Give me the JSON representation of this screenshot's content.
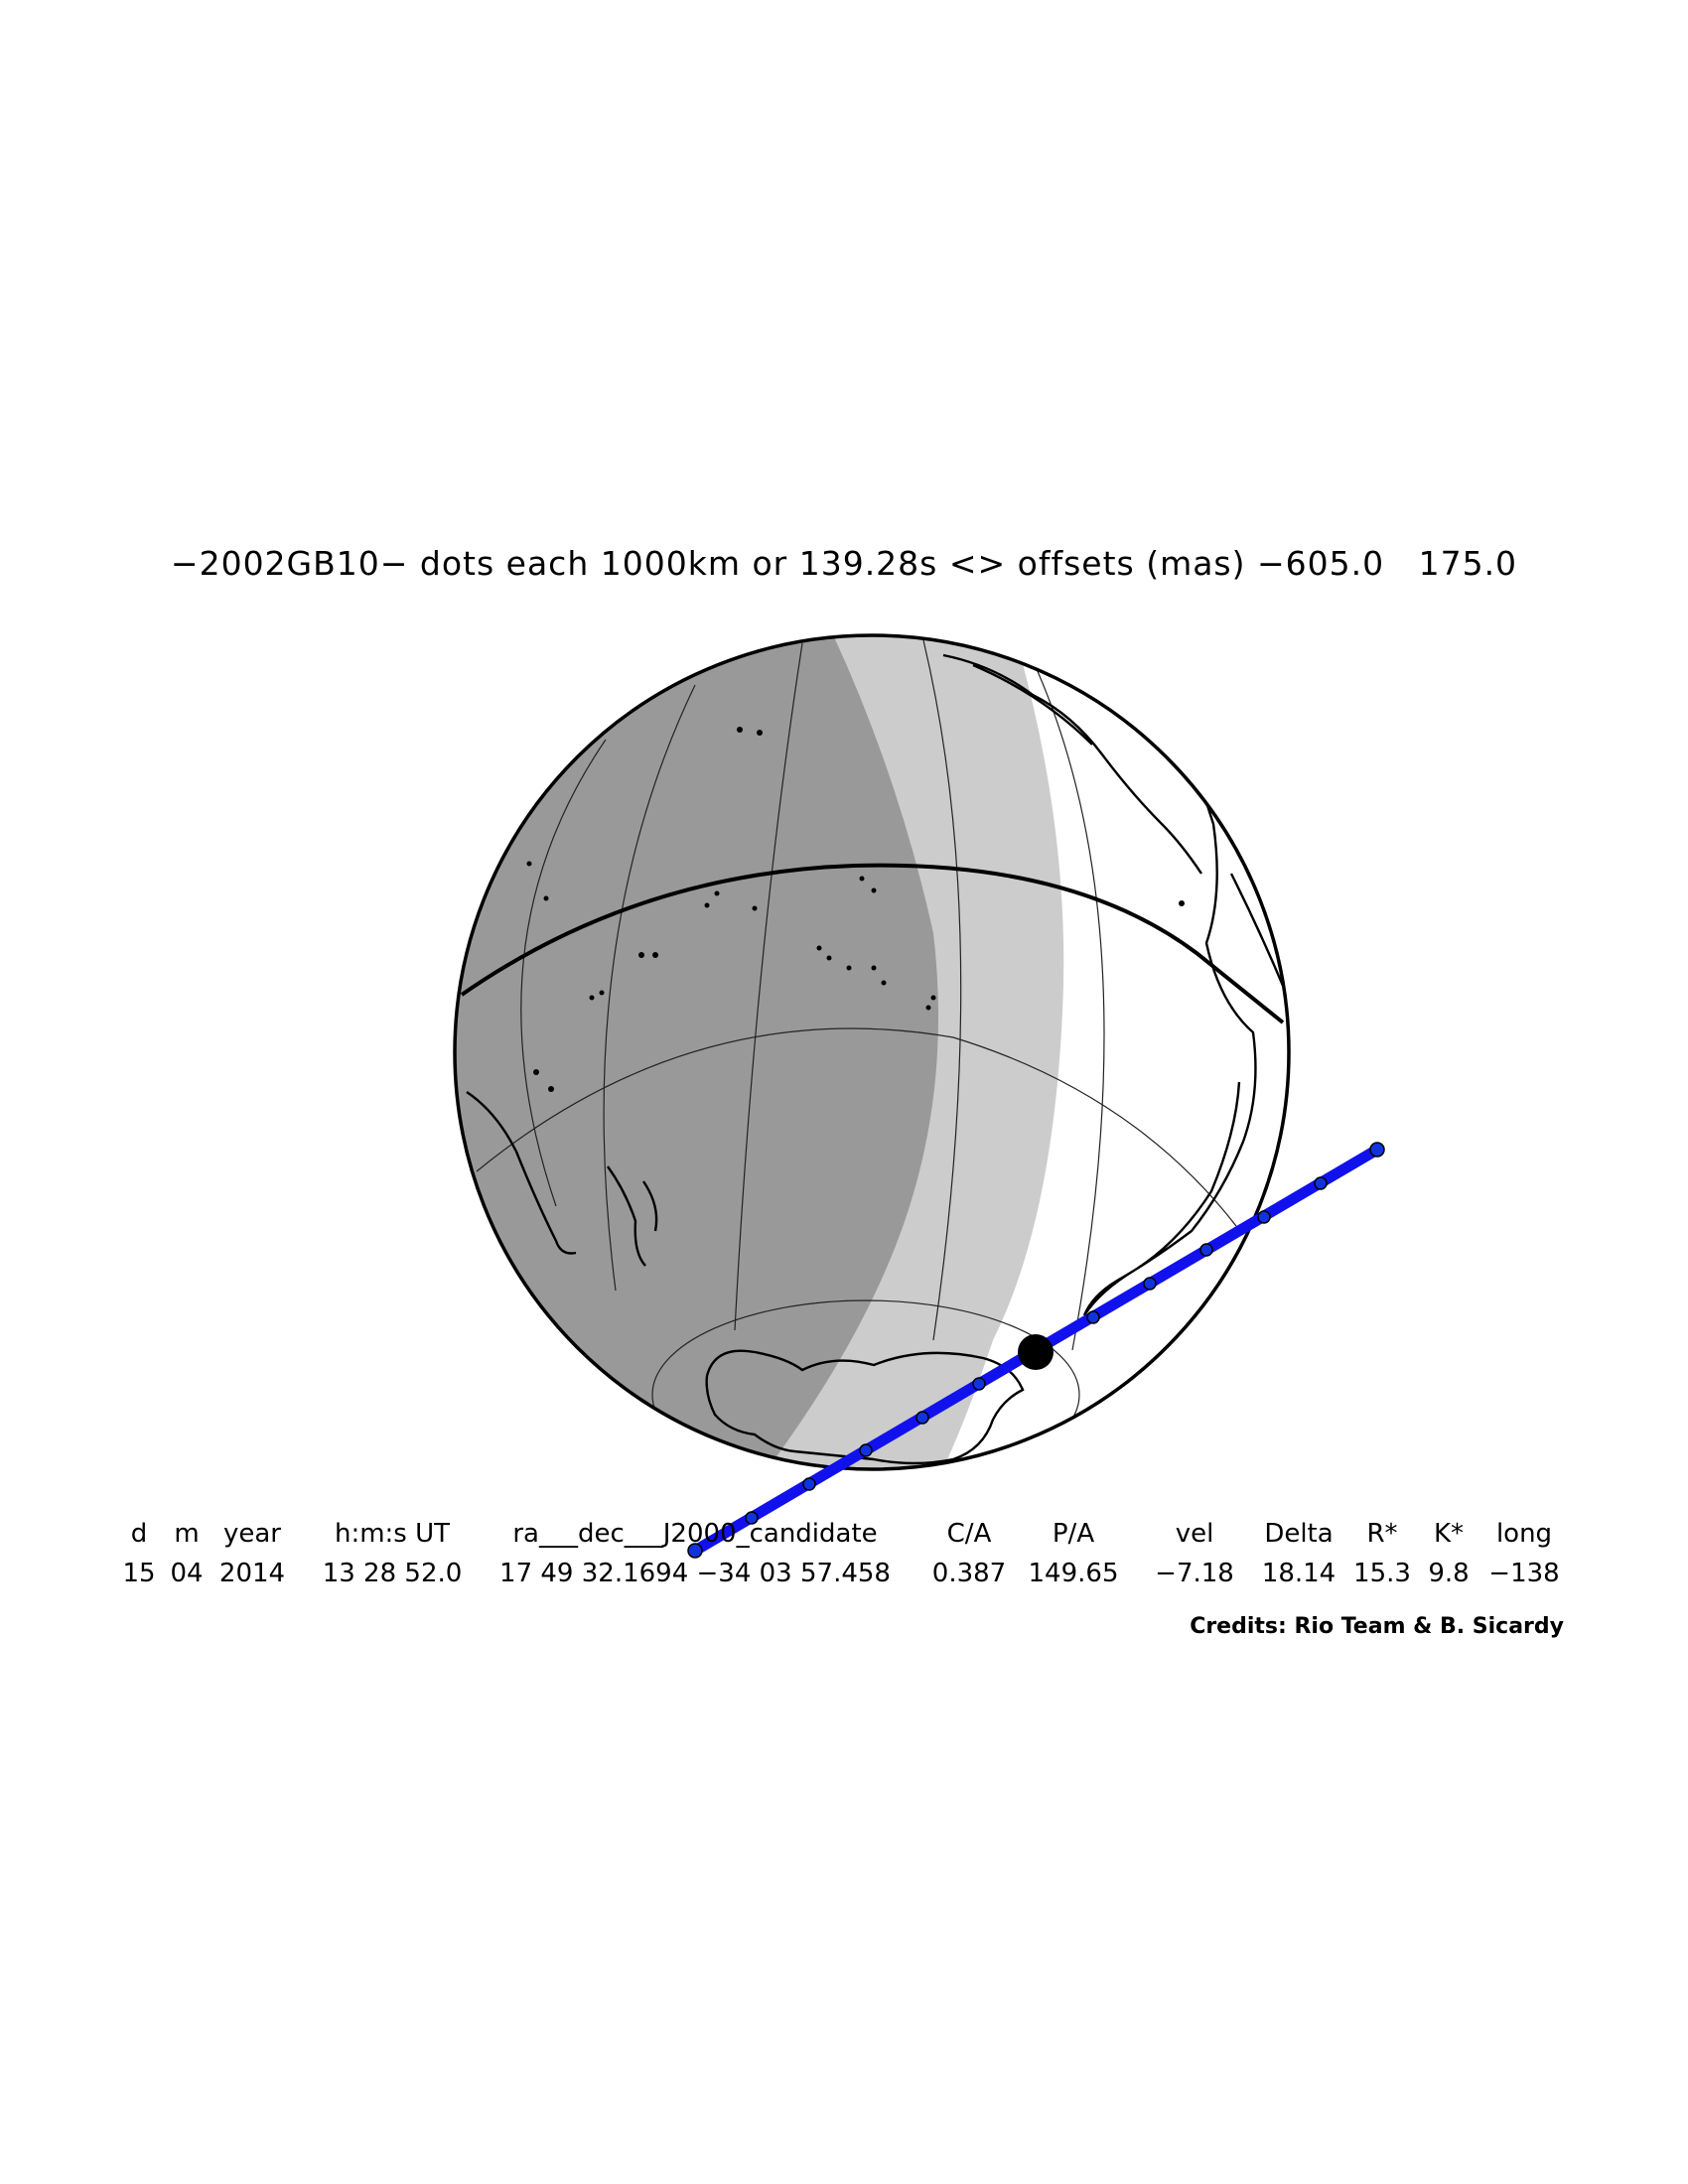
{
  "title": "−2002GB10− dots each 1000km or 139.28s <> offsets (mas) −605.0   175.0",
  "table": {
    "headers": [
      "d",
      "m",
      "year",
      "h:m:s UT",
      "ra___dec___J2000_candidate",
      "C/A",
      "P/A",
      "vel",
      "Delta",
      "R*",
      "K*",
      "long"
    ],
    "values": [
      "15",
      "04",
      "2014",
      "13 28 52.0",
      "17 49 32.1694 −34 03 57.458",
      "0.387",
      "149.65",
      "−7.18",
      "18.14",
      "15.3",
      "9.8",
      "−138"
    ]
  },
  "credits": "Credits: Rio Team & B. Sicardy",
  "colors": {
    "night": "#999999",
    "twilight": "#cccccc",
    "day": "#ffffff",
    "path": "#1111ee",
    "outline": "#000000"
  }
}
